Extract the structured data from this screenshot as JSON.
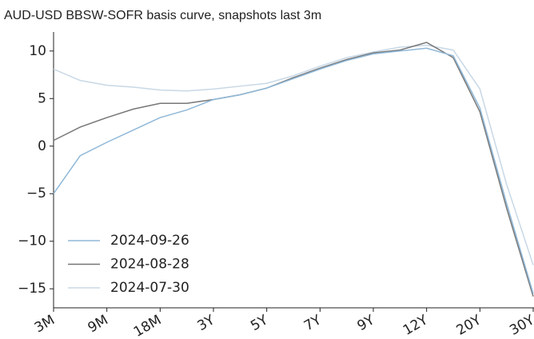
{
  "chart_data": {
    "type": "line",
    "title": "AUD-USD BBSW-SOFR basis curve, snapshots last 3m",
    "categories": [
      "3M",
      null,
      "9M",
      null,
      "18M",
      null,
      "3Y",
      null,
      "5Y",
      null,
      "7Y",
      null,
      "9Y",
      null,
      "12Y",
      null,
      "20Y",
      null,
      "30Y"
    ],
    "series": [
      {
        "name": "2024-09-26",
        "color": "#8fb8d8",
        "values": [
          -5.0,
          -1.0,
          0.4,
          1.7,
          3.0,
          3.8,
          4.9,
          5.4,
          6.1,
          7.1,
          8.1,
          9.0,
          9.7,
          10.0,
          10.3,
          9.5,
          4.0,
          -6.0,
          -15.5
        ]
      },
      {
        "name": "2024-08-28",
        "color": "#777777",
        "values": [
          0.6,
          2.0,
          3.0,
          3.9,
          4.5,
          4.5,
          4.9,
          5.4,
          6.1,
          7.2,
          8.2,
          9.1,
          9.8,
          10.1,
          10.9,
          9.3,
          3.6,
          -6.5,
          -15.8
        ]
      },
      {
        "name": "2024-07-30",
        "color": "#c8d8e6",
        "values": [
          8.1,
          6.9,
          6.4,
          6.2,
          5.9,
          5.8,
          6.0,
          6.3,
          6.6,
          7.4,
          8.4,
          9.3,
          9.9,
          10.4,
          10.6,
          10.1,
          6.0,
          -4.0,
          -12.5
        ]
      }
    ],
    "ylim": [
      -17,
      12
    ],
    "yticks": [
      {
        "value": -15,
        "label": "−15"
      },
      {
        "value": -10,
        "label": "−10"
      },
      {
        "value": -5,
        "label": "−5"
      },
      0,
      5,
      10
    ],
    "grid": false,
    "legend": "lower left"
  }
}
